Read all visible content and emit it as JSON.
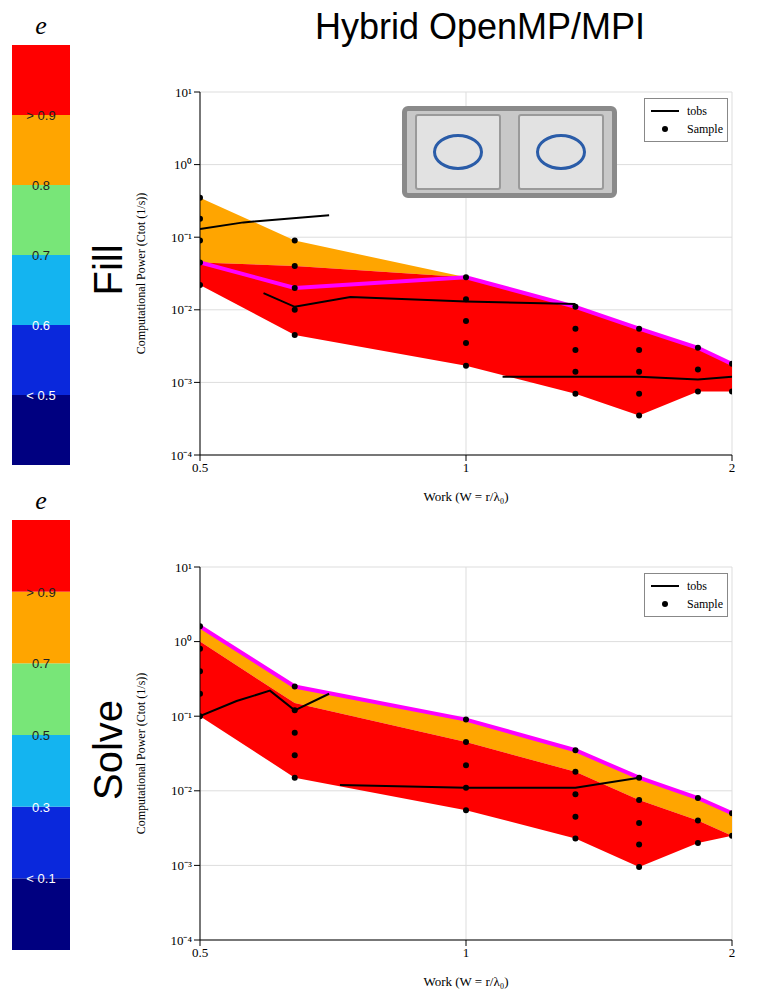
{
  "title": "Hybrid OpenMP/MPI",
  "chart_data": [
    {
      "type": "composed",
      "title": "Fill",
      "xlabel": "Work (W = r/λ₀)",
      "ylabel": "Computational Power (Ctot (1/s))",
      "log": true,
      "grid": true,
      "legend": "upper right",
      "xlim": [
        0.5,
        2
      ],
      "xticks": [
        0.5,
        1,
        2
      ],
      "ylim": [
        0.0001,
        10
      ],
      "yticks": [
        {
          "value": 0.0001,
          "label": "10⁻⁴"
        },
        {
          "value": 0.001,
          "label": "10⁻³"
        },
        {
          "value": 0.01,
          "label": "10⁻²"
        },
        {
          "value": 0.1,
          "label": "10⁻¹"
        },
        {
          "value": 1,
          "label": "10⁰"
        },
        {
          "value": 10,
          "label": "10¹"
        }
      ],
      "x": [
        0.5,
        0.64,
        1,
        1.33,
        1.57,
        1.83,
        2
      ],
      "series": [
        {
          "type": "area",
          "color": "#ffa500",
          "lower": [
            0.045,
            0.04,
            0.028,
            0.011,
            0.0055,
            0.003,
            0.0018
          ],
          "upper": [
            0.35,
            0.09,
            0.028,
            0.011,
            0.0055,
            0.003,
            0.0018
          ]
        },
        {
          "type": "area",
          "color": "#ff0000",
          "lower": [
            0.022,
            0.0045,
            0.0017,
            0.0007,
            0.00035,
            0.00075,
            0.00075
          ],
          "upper": [
            0.045,
            0.04,
            0.028,
            0.011,
            0.0055,
            0.003,
            0.0018
          ]
        },
        {
          "type": "line",
          "color": "#ff00ff",
          "values": [
            0.045,
            0.02,
            0.028,
            0.011,
            0.0055,
            0.003,
            0.0018
          ]
        },
        {
          "name": "tobs",
          "type": "line",
          "color": "#000000",
          "x": [
            0.5,
            0.56,
            0.7,
            0.65,
            0.59,
            0.64,
            0.74,
            1,
            1.33,
            1.2,
            1.1,
            1.57,
            1.83,
            2
          ],
          "values": [
            0.13,
            0.16,
            0.2,
            null,
            0.017,
            0.011,
            0.015,
            0.013,
            0.012,
            null,
            0.0012,
            0.0012,
            0.0011,
            0.0012
          ]
        },
        {
          "name": "Sample",
          "type": "scatter",
          "color": "#000000",
          "marker": "circle",
          "x": [
            0.5,
            0.5,
            0.5,
            0.5,
            0.5,
            0.64,
            0.64,
            0.64,
            0.64,
            0.64,
            1,
            1,
            1,
            1,
            1,
            1.33,
            1.33,
            1.33,
            1.33,
            1.33,
            1.57,
            1.57,
            1.57,
            1.57,
            1.57,
            1.83,
            1.83,
            1.83,
            2,
            2
          ],
          "values": [
            0.35,
            0.18,
            0.09,
            0.045,
            0.022,
            0.09,
            0.04,
            0.02,
            0.01,
            0.0045,
            0.028,
            0.014,
            0.007,
            0.0035,
            0.0017,
            0.011,
            0.0055,
            0.0028,
            0.0014,
            0.0007,
            0.0055,
            0.0028,
            0.0014,
            0.0007,
            0.00035,
            0.003,
            0.0015,
            0.00075,
            0.0018,
            0.00075
          ]
        }
      ],
      "colorbar": {
        "title": "e",
        "range": [
          0.4,
          1.0
        ],
        "colors": [
          "#000080",
          "#0a28dc",
          "#14b4f0",
          "#78e678",
          "#ffa500",
          "#ff0000"
        ],
        "ticks": [
          {
            "value": 0.9,
            "label": "> 0.9"
          },
          0.8,
          0.7,
          0.6,
          {
            "value": 0.5,
            "label": "< 0.5"
          }
        ]
      }
    },
    {
      "type": "composed",
      "title": "Solve",
      "xlabel": "Work (W = r/λ₀)",
      "ylabel": "Computational Power (Ctot (1/s))",
      "log": true,
      "grid": true,
      "legend": "upper right",
      "xlim": [
        0.5,
        2
      ],
      "xticks": [
        0.5,
        1,
        2
      ],
      "ylim": [
        0.0001,
        10
      ],
      "yticks": [
        {
          "value": 0.0001,
          "label": "10⁻⁴"
        },
        {
          "value": 0.001,
          "label": "10⁻³"
        },
        {
          "value": 0.01,
          "label": "10⁻²"
        },
        {
          "value": 0.1,
          "label": "10⁻¹"
        },
        {
          "value": 1,
          "label": "10⁰"
        },
        {
          "value": 10,
          "label": "10¹"
        }
      ],
      "x": [
        0.5,
        0.64,
        1,
        1.33,
        1.57,
        1.83,
        2
      ],
      "series": [
        {
          "type": "area",
          "color": "#ffa500",
          "lower": [
            1.0,
            0.15,
            0.045,
            0.018,
            0.0075,
            0.004,
            0.0025
          ],
          "upper": [
            1.6,
            0.25,
            0.09,
            0.035,
            0.015,
            0.008,
            0.005
          ]
        },
        {
          "type": "area",
          "color": "#ff0000",
          "lower": [
            0.1,
            0.015,
            0.0055,
            0.0023,
            0.00095,
            0.002,
            0.0025
          ],
          "upper": [
            1.0,
            0.15,
            0.045,
            0.018,
            0.0075,
            0.004,
            0.0025
          ]
        },
        {
          "type": "line",
          "color": "#ff00ff",
          "values": [
            1.6,
            0.25,
            0.09,
            0.035,
            0.015,
            0.008,
            0.005
          ]
        },
        {
          "name": "tobs",
          "type": "line",
          "color": "#000000",
          "x": [
            0.5,
            0.55,
            0.6,
            0.64,
            0.7,
            0.71,
            0.72,
            1,
            1.33,
            1.57
          ],
          "values": [
            0.1,
            0.16,
            0.22,
            0.12,
            0.2,
            null,
            0.012,
            0.011,
            0.011,
            0.015
          ]
        },
        {
          "name": "Sample",
          "type": "scatter",
          "color": "#000000",
          "marker": "circle",
          "x": [
            0.5,
            0.5,
            0.5,
            0.5,
            0.5,
            0.64,
            0.64,
            0.64,
            0.64,
            0.64,
            1,
            1,
            1,
            1,
            1,
            1.33,
            1.33,
            1.33,
            1.33,
            1.33,
            1.57,
            1.57,
            1.57,
            1.57,
            1.57,
            1.83,
            1.83,
            1.83,
            2,
            2
          ],
          "values": [
            1.6,
            0.8,
            0.4,
            0.2,
            0.1,
            0.25,
            0.12,
            0.06,
            0.03,
            0.015,
            0.09,
            0.045,
            0.022,
            0.011,
            0.0055,
            0.035,
            0.018,
            0.009,
            0.0045,
            0.0023,
            0.015,
            0.0075,
            0.0037,
            0.0019,
            0.00095,
            0.008,
            0.004,
            0.002,
            0.005,
            0.0025
          ]
        }
      ],
      "colorbar": {
        "title": "e",
        "range": [
          -0.1,
          1.1
        ],
        "colors": [
          "#000080",
          "#0a28dc",
          "#14b4f0",
          "#78e678",
          "#ffa500",
          "#ff0000"
        ],
        "ticks": [
          {
            "value": 0.9,
            "label": "> 0.9"
          },
          0.7,
          0.5,
          0.3,
          {
            "value": 0.1,
            "label": "< 0.1"
          }
        ]
      }
    }
  ]
}
